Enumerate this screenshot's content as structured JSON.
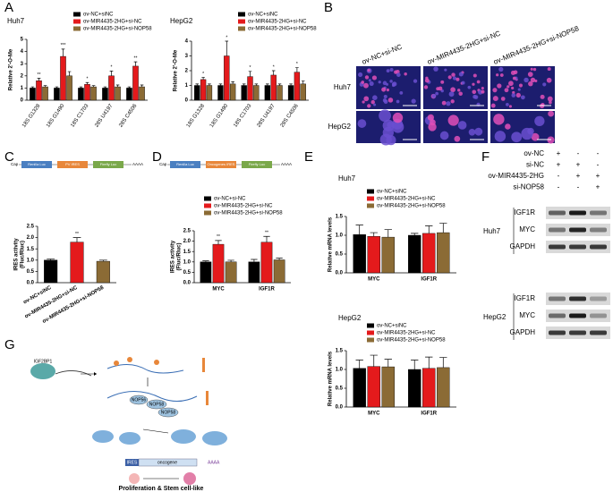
{
  "chart_data": [
    {
      "type": "bar",
      "title": "Huh7",
      "ylabel": "Relative 2'-O-Me",
      "categories": [
        "18S G1328",
        "18S G1490",
        "18S C1703",
        "28S U4197",
        "28S C4506"
      ],
      "ylim": [
        0,
        5
      ],
      "yticks": [
        0,
        1,
        2,
        3,
        4,
        5
      ],
      "series": [
        {
          "name": "ov-NC+siNC",
          "color": "#000000",
          "values": [
            1,
            1,
            1,
            1,
            1
          ],
          "errors": [
            0.1,
            0.1,
            0.1,
            0.1,
            0.1
          ]
        },
        {
          "name": "ov-MIR4435-2HG+si-NC",
          "color": "#e41a1c",
          "values": [
            1.6,
            3.6,
            1.3,
            2.0,
            2.8
          ],
          "errors": [
            0.2,
            0.6,
            0.15,
            0.4,
            0.35
          ],
          "sig": [
            "**",
            "***",
            "*",
            "*",
            "**"
          ]
        },
        {
          "name": "ov-MIR4435-2HG+si-NOP58",
          "color": "#8b6b35",
          "values": [
            1.1,
            2.0,
            1.1,
            1.1,
            1.1
          ],
          "errors": [
            0.1,
            0.35,
            0.1,
            0.15,
            0.15
          ]
        }
      ]
    },
    {
      "type": "bar",
      "title": "HepG2",
      "ylabel": "Relative 2'-O-Me",
      "categories": [
        "18S G1328",
        "18S G1490",
        "18S C1703",
        "28S U4197",
        "28S C4506"
      ],
      "ylim": [
        0,
        4
      ],
      "yticks": [
        0,
        1,
        2,
        3,
        4
      ],
      "series": [
        {
          "name": "ov-NC+siNC",
          "color": "#000000",
          "values": [
            1,
            1,
            1,
            1,
            1
          ],
          "errors": [
            0.1,
            0.1,
            0.1,
            0.1,
            0.1
          ]
        },
        {
          "name": "ov-MIR4435-2HG+si-NC",
          "color": "#e41a1c",
          "values": [
            1.4,
            3.0,
            1.6,
            1.7,
            1.9
          ],
          "errors": [
            0.15,
            1.0,
            0.35,
            0.3,
            0.3
          ],
          "sig": [
            "*",
            "*",
            "*",
            "*",
            "*"
          ]
        },
        {
          "name": "ov-MIR4435-2HG+si-NOP58",
          "color": "#8b6b35",
          "values": [
            1.0,
            1.1,
            1.0,
            1.0,
            1.1
          ],
          "errors": [
            0.1,
            0.15,
            0.1,
            0.1,
            0.2
          ]
        }
      ]
    },
    {
      "type": "bar",
      "ylabel": [
        "IRES activity",
        "(Fluc/Rluc)"
      ],
      "categories": [
        "ov-NC+siNC",
        "ov-MIR4435-2HG+si-NC",
        "ov-MIR4435-2HG+si-NOP58"
      ],
      "values": [
        1.0,
        1.8,
        0.95
      ],
      "errors": [
        0.05,
        0.2,
        0.05
      ],
      "colors": [
        "#000000",
        "#e41a1c",
        "#8b6b35"
      ],
      "sig": [
        null,
        "**",
        null
      ],
      "ylim": [
        0,
        2.5
      ],
      "yticks": [
        {
          "value": 0,
          "label": "0.0"
        },
        0.5,
        {
          "value": 1,
          "label": "1.0"
        },
        1.5,
        {
          "value": 2,
          "label": "2.0"
        },
        2.5
      ]
    },
    {
      "type": "bar",
      "ylabel": [
        "IRES activity",
        "(Fluc/Rluc)"
      ],
      "categories": [
        "MYC",
        "IGF1R"
      ],
      "ylim": [
        0,
        2.5
      ],
      "yticks": [
        {
          "value": 0,
          "label": "0.0"
        },
        0.5,
        {
          "value": 1,
          "label": "1.0"
        },
        1.5,
        {
          "value": 2,
          "label": "2.0"
        },
        2.5
      ],
      "series": [
        {
          "name": "ov-NC+si-NC",
          "color": "#000000",
          "values": [
            1.0,
            1.0
          ],
          "errors": [
            0.05,
            0.12
          ]
        },
        {
          "name": "ov-MIR4435-2HG+si-NC",
          "color": "#e41a1c",
          "values": [
            1.85,
            1.95
          ],
          "errors": [
            0.18,
            0.28
          ],
          "sig": [
            "**",
            "**"
          ]
        },
        {
          "name": "ov-MIR4435-2HG+si-NOP58",
          "color": "#8b6b35",
          "values": [
            1.0,
            1.1
          ],
          "errors": [
            0.08,
            0.08
          ]
        }
      ]
    },
    {
      "type": "bar",
      "title": "Huh7",
      "ylabel": "Relative mRNA levels",
      "categories": [
        "MYC",
        "IGF1R"
      ],
      "ylim": [
        0,
        1.5
      ],
      "yticks": [
        {
          "value": 0,
          "label": "0.0"
        },
        0.5,
        {
          "value": 1,
          "label": "1.0"
        },
        1.5
      ],
      "series": [
        {
          "name": "ov-NC+siNC",
          "color": "#000000",
          "values": [
            1.02,
            1.0
          ],
          "errors": [
            0.25,
            0.05
          ]
        },
        {
          "name": "ov-MIR4435-2HG+si-NC",
          "color": "#e41a1c",
          "values": [
            0.97,
            1.05
          ],
          "errors": [
            0.1,
            0.2
          ]
        },
        {
          "name": "ov-MIR4435-2HG+si-NOP58",
          "color": "#8b6b35",
          "values": [
            0.95,
            1.07
          ],
          "errors": [
            0.2,
            0.25
          ]
        }
      ]
    },
    {
      "type": "bar",
      "title": "HepG2",
      "ylabel": "Relative mRNA levels",
      "categories": [
        "MYC",
        "IGF1R"
      ],
      "ylim": [
        0,
        1.5
      ],
      "yticks": [
        {
          "value": 0,
          "label": "0.0"
        },
        0.5,
        {
          "value": 1,
          "label": "1.0"
        },
        1.5
      ],
      "series": [
        {
          "name": "ov-NC+siNC",
          "color": "#000000",
          "values": [
            1.03,
            1.0
          ],
          "errors": [
            0.22,
            0.25
          ]
        },
        {
          "name": "ov-MIR4435-2HG+si-NC",
          "color": "#e41a1c",
          "values": [
            1.08,
            1.03
          ],
          "errors": [
            0.3,
            0.3
          ]
        },
        {
          "name": "ov-MIR4435-2HG+si-NOP58",
          "color": "#8b6b35",
          "values": [
            1.07,
            1.05
          ],
          "errors": [
            0.2,
            0.27
          ]
        }
      ]
    }
  ],
  "panel_labels": [
    "A",
    "B",
    "C",
    "D",
    "E",
    "F",
    "G"
  ],
  "panel_b": {
    "columns": [
      "ov-NC+si-NC",
      "ov-MIR4435-2HG+si-NC",
      "ov-MIR4435-2HG+si-NOP58"
    ],
    "rows": [
      "Huh7",
      "HepG2"
    ]
  },
  "panel_c_construct": [
    "Cap",
    "Renilla Luc",
    "PV IRES",
    "Firefly Luc",
    "AAAA"
  ],
  "panel_d_construct": [
    "Cap",
    "Renilla Luc",
    "Oncogenes IRES",
    "Firefly Luc",
    "AAAA"
  ],
  "panel_f": {
    "conditions": [
      {
        "label": "ov-NC",
        "signs": [
          "+",
          "-",
          "-"
        ]
      },
      {
        "label": "si-NC",
        "signs": [
          "+",
          "+",
          "-"
        ]
      },
      {
        "label": "ov-MIR4435-2HG",
        "signs": [
          "-",
          "+",
          "+"
        ]
      },
      {
        "label": "si-NOP58",
        "signs": [
          "-",
          "-",
          "+"
        ]
      }
    ],
    "cell_lines": [
      {
        "name": "Huh7",
        "bands": [
          "IGF1R",
          "MYC",
          "GAPDH"
        ]
      },
      {
        "name": "HepG2",
        "bands": [
          "IGF1R",
          "MYC",
          "GAPDH"
        ]
      }
    ]
  },
  "panel_g": {
    "labels": [
      "IGF2BP1",
      "NOP56",
      "NOP58",
      "NOP58",
      "IRES",
      "oncogene",
      "AAAA",
      "Proliferation & Stem cell-like"
    ]
  }
}
